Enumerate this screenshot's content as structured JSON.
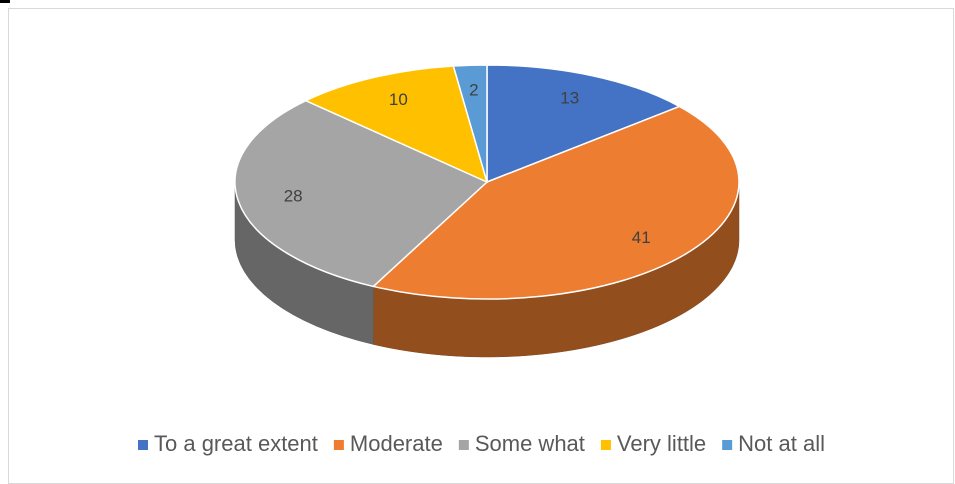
{
  "chart_data": {
    "type": "pie3d",
    "categories": [
      "To a great extent",
      "Moderate",
      "Some what",
      "Very little",
      "Not at all"
    ],
    "values": [
      13,
      41,
      28,
      10,
      2
    ],
    "colors": [
      "#4472c4",
      "#ed7d31",
      "#a5a5a5",
      "#ffc000",
      "#5b9bd5"
    ],
    "legend": "bottom"
  }
}
